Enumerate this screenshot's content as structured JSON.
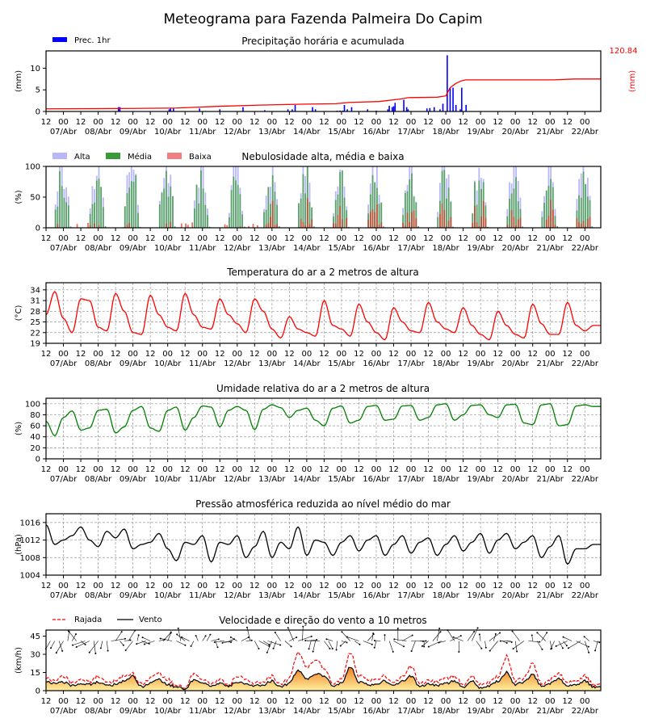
{
  "title": "Meteograma para Fazenda Palmeira Do Capim",
  "axis": {
    "hour_ticks": [
      "12",
      "00",
      "12",
      "00",
      "12",
      "00",
      "12",
      "00",
      "12",
      "00",
      "12",
      "00",
      "12",
      "00",
      "12",
      "00",
      "12",
      "00",
      "12",
      "00",
      "12",
      "00",
      "12",
      "00",
      "12",
      "00",
      "12",
      "00",
      "12",
      "00",
      "12",
      "00"
    ],
    "day_labels": [
      "07/Abr",
      "08/Abr",
      "09/Abr",
      "10/Abr",
      "11/Abr",
      "12/Abr",
      "13/Abr",
      "14/Abr",
      "15/Abr",
      "16/Abr",
      "17/Abr",
      "18/Abr",
      "19/Abr",
      "20/Abr",
      "21/Abr",
      "22/Abr"
    ]
  },
  "colors": {
    "precip": "#0000ff",
    "accum": "#ff0000",
    "alta": "#b8b8f8",
    "media": "#3a9a3a",
    "baixa": "#e03020",
    "temp": "#ff0000",
    "rh": "#008000",
    "press": "#000000",
    "gust": "#ff0000",
    "wind": "#000000"
  },
  "chart_data": [
    {
      "type": "bar",
      "id": "precip",
      "title": "Precipitação horária e acumulada",
      "ylabel": "(mm)",
      "ylabel_right": "(mm)",
      "ylim": [
        0,
        14
      ],
      "yticks": [
        "0",
        "5",
        "10"
      ],
      "legend": [
        "Prec. 1hr"
      ],
      "accum_total_label": "120.84",
      "bars_hour_value": [
        [
          50,
          1
        ],
        [
          51,
          1
        ],
        [
          85,
          0.5
        ],
        [
          86,
          0.7
        ],
        [
          88,
          0.8
        ],
        [
          106,
          0.7
        ],
        [
          120,
          0.5
        ],
        [
          136,
          1
        ],
        [
          151,
          0.3
        ],
        [
          167,
          0.5
        ],
        [
          170,
          0.5
        ],
        [
          172,
          1.5
        ],
        [
          184,
          1
        ],
        [
          186,
          0.5
        ],
        [
          201,
          0.2
        ],
        [
          203,
          0.2
        ],
        [
          205,
          0.2
        ],
        [
          206,
          1.5
        ],
        [
          208,
          0.5
        ],
        [
          211,
          1
        ],
        [
          222,
          0.5
        ],
        [
          228,
          0.2
        ],
        [
          236,
          0.5
        ],
        [
          237,
          1.3
        ],
        [
          239,
          1
        ],
        [
          240,
          1.2
        ],
        [
          241,
          2
        ],
        [
          247,
          2.7
        ],
        [
          249,
          1
        ],
        [
          250,
          0.5
        ],
        [
          263,
          0.7
        ],
        [
          265,
          0.8
        ],
        [
          268,
          1
        ],
        [
          272,
          0.5
        ],
        [
          274,
          1.8
        ],
        [
          277,
          13
        ],
        [
          279,
          5.5
        ],
        [
          281,
          5.5
        ],
        [
          283,
          1.5
        ],
        [
          286,
          0.5
        ],
        [
          287,
          5.5
        ],
        [
          290,
          1.5
        ]
      ],
      "accum_points": [
        [
          0,
          0.6
        ],
        [
          60,
          0.7
        ],
        [
          90,
          0.8
        ],
        [
          120,
          1.2
        ],
        [
          150,
          1.5
        ],
        [
          180,
          1.7
        ],
        [
          200,
          1.8
        ],
        [
          210,
          2.1
        ],
        [
          230,
          2.3
        ],
        [
          245,
          2.9
        ],
        [
          250,
          3.2
        ],
        [
          270,
          3.3
        ],
        [
          276,
          3.6
        ],
        [
          279,
          5.5
        ],
        [
          283,
          6.5
        ],
        [
          287,
          7.1
        ],
        [
          290,
          7.3
        ],
        [
          350,
          7.3
        ],
        [
          365,
          7.5
        ],
        [
          380,
          7.5
        ],
        [
          383,
          7.5
        ]
      ]
    },
    {
      "type": "bar",
      "id": "clouds",
      "title": "Nebulosidade alta, média e baixa",
      "ylabel": "(%)",
      "ylim": [
        0,
        100
      ],
      "yticks": [
        "0",
        "50",
        "100"
      ],
      "legend": [
        "Alta",
        "Média",
        "Baixa"
      ]
    },
    {
      "type": "line",
      "id": "temp",
      "title": "Temperatura do ar a 2 metros de altura",
      "ylabel": "(°C)",
      "ylim": [
        19,
        36
      ],
      "yticks": [
        "19",
        "22",
        "25",
        "28",
        "31",
        "34"
      ],
      "series_6h": [
        27,
        33.5,
        26,
        22,
        31.5,
        31,
        23.5,
        22.5,
        33,
        28,
        22,
        21.5,
        32.5,
        27,
        23.5,
        22.5,
        33,
        27,
        23.5,
        23,
        31.5,
        27,
        24.5,
        22,
        31.5,
        28,
        23,
        20.5,
        26.5,
        23,
        22,
        21,
        31,
        24,
        23,
        21,
        30,
        25,
        22,
        20,
        29,
        25,
        22.5,
        22,
        30.5,
        25,
        23,
        22,
        29,
        24,
        21.5,
        20,
        28,
        24,
        21.5,
        20.5,
        30,
        24.5,
        21.5,
        21.5,
        30.5,
        24,
        22.5,
        24
      ]
    },
    {
      "type": "line",
      "id": "rh",
      "title": "Umidade relativa do ar a 2 metros de altura",
      "ylabel": "(%)",
      "ylim": [
        0,
        110
      ],
      "yticks": [
        "0",
        "20",
        "40",
        "60",
        "80",
        "100"
      ],
      "series_6h": [
        68,
        42,
        75,
        87,
        52,
        56,
        88,
        90,
        47,
        58,
        88,
        95,
        56,
        50,
        88,
        94,
        52,
        75,
        96,
        94,
        58,
        88,
        95,
        88,
        53,
        90,
        98,
        93,
        75,
        88,
        92,
        70,
        60,
        92,
        96,
        65,
        70,
        95,
        97,
        70,
        72,
        96,
        97,
        70,
        75,
        98,
        100,
        70,
        80,
        97,
        98,
        80,
        75,
        98,
        99,
        65,
        62,
        98,
        100,
        60,
        62,
        96,
        98,
        95
      ]
    },
    {
      "type": "line",
      "id": "press",
      "title": "Pressão atmosférica reduzida ao nível médio do mar",
      "ylabel": "(hPa)",
      "ylim": [
        1004,
        1018
      ],
      "yticks": [
        "1004",
        "1008",
        "1012",
        "1016"
      ],
      "series_6h": [
        1015.5,
        1011,
        1012,
        1013,
        1015,
        1012,
        1010.5,
        1014,
        1012.5,
        1014.5,
        1010,
        1011,
        1011.5,
        1013.5,
        1010,
        1007.3,
        1011.5,
        1011,
        1013,
        1007,
        1011.5,
        1011,
        1013,
        1008,
        1010.5,
        1014,
        1008,
        1011.5,
        1010,
        1015,
        1008.5,
        1012,
        1011.5,
        1008.5,
        1011.5,
        1013,
        1009.5,
        1012,
        1013,
        1008.5,
        1011,
        1013,
        1009,
        1011.5,
        1012.5,
        1008.5,
        1011,
        1013,
        1009.5,
        1011.5,
        1013.5,
        1009,
        1012,
        1013.5,
        1010,
        1011.5,
        1013,
        1008,
        1010.5,
        1013,
        1006.5,
        1010,
        1010,
        1011
      ]
    },
    {
      "type": "area",
      "id": "wind",
      "title": "Velocidade e direção do vento a 10 metros",
      "ylabel": "(km/h)",
      "ylim": [
        0,
        50
      ],
      "yticks": [
        "0",
        "15",
        "30",
        "45"
      ],
      "legend": [
        "Rajada",
        "Vento"
      ],
      "wind_6h": [
        7,
        6,
        7,
        4,
        6,
        5,
        7,
        4,
        5,
        8,
        12,
        3,
        6,
        9,
        5,
        3,
        1,
        9,
        7,
        4,
        6,
        4,
        7,
        6,
        4,
        5,
        8,
        3,
        6,
        17,
        10,
        14,
        12,
        4,
        6,
        20,
        7,
        5,
        5,
        8,
        4,
        8,
        12,
        3,
        6,
        4,
        6,
        8,
        3,
        8,
        2,
        4,
        8,
        15,
        5,
        7,
        13,
        4,
        6,
        10,
        4,
        5,
        8,
        3
      ],
      "gust_6h": [
        10,
        8,
        12,
        6,
        10,
        7,
        12,
        6,
        8,
        12,
        14,
        5,
        10,
        14,
        9,
        4,
        2,
        14,
        10,
        6,
        9,
        5,
        12,
        10,
        6,
        8,
        12,
        5,
        10,
        32,
        20,
        26,
        18,
        6,
        9,
        32,
        12,
        9,
        9,
        12,
        6,
        12,
        20,
        5,
        9,
        7,
        10,
        12,
        5,
        12,
        5,
        7,
        12,
        28,
        8,
        10,
        22,
        6,
        9,
        14,
        7,
        8,
        12,
        5
      ]
    }
  ]
}
